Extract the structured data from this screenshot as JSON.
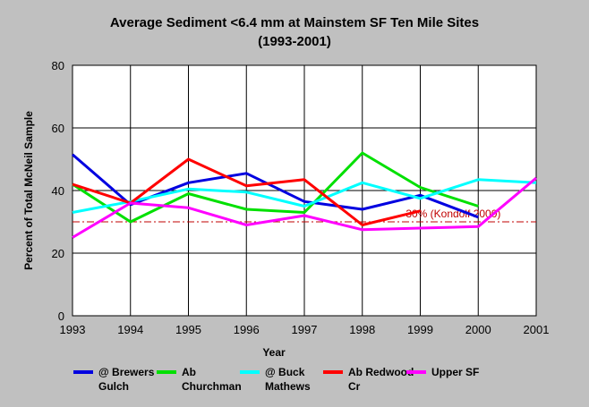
{
  "chart_data": {
    "type": "line",
    "title": "Average Sediment <6.4 mm at Mainstem SF Ten Mile Sites",
    "subtitle": "(1993-2001)",
    "xlabel": "Year",
    "ylabel": "Percent of Total McNeil Sample",
    "x": [
      1993,
      1994,
      1995,
      1996,
      1997,
      1998,
      1999,
      2000,
      2001
    ],
    "xlim": [
      1993,
      2001
    ],
    "ylim": [
      0,
      80
    ],
    "yticks": [
      0,
      20,
      40,
      60,
      80
    ],
    "grid": true,
    "legend_position": "bottom",
    "series": [
      {
        "name": "@ Brewers Gulch",
        "legend_lines": [
          "@ Brewers",
          "Gulch"
        ],
        "color": "#0000e0",
        "values": [
          51.5,
          35.5,
          42.5,
          45.5,
          36.5,
          34,
          38.5,
          31.5,
          null
        ]
      },
      {
        "name": "Ab Churchman",
        "legend_lines": [
          "Ab",
          "Churchman"
        ],
        "color": "#00e000",
        "values": [
          42,
          30,
          39,
          34,
          33,
          52,
          41,
          35,
          null
        ]
      },
      {
        "name": "@ Buck Mathews",
        "legend_lines": [
          "@ Buck",
          "Mathews"
        ],
        "color": "#00ffff",
        "values": [
          33,
          36.5,
          40.5,
          39.5,
          35,
          42.5,
          37.5,
          43.5,
          42.5
        ]
      },
      {
        "name": "Ab Redwood Cr",
        "legend_lines": [
          "Ab Redwood",
          "Cr"
        ],
        "color": "#ff0000",
        "values": [
          42,
          36,
          50,
          41.5,
          43.5,
          29,
          33.5,
          null,
          null
        ]
      },
      {
        "name": "Upper SF",
        "legend_lines": [
          "Upper SF"
        ],
        "color": "#ff00ff",
        "values": [
          25,
          36,
          34.5,
          29,
          32,
          27.5,
          28,
          28.5,
          44
        ]
      }
    ],
    "reference_line": {
      "y": 30,
      "label": "30% (Kondolf 2000)",
      "color": "#c00000"
    }
  }
}
